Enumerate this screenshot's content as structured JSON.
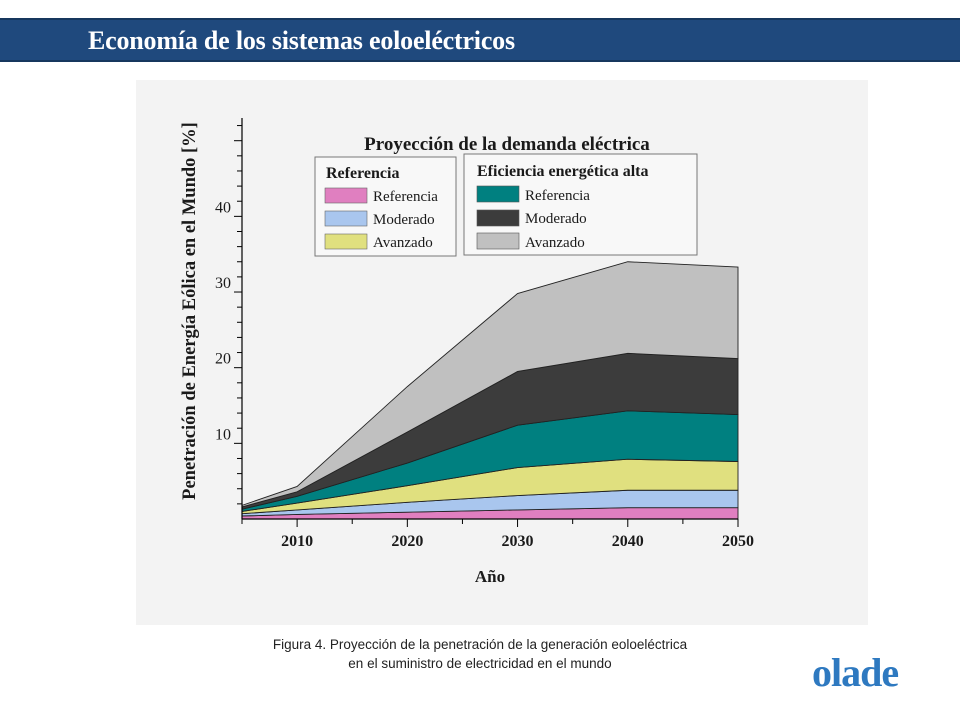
{
  "header": {
    "title": "Economía de los sistemas eoloeléctricos"
  },
  "caption": {
    "line1": "Figura 4. Proyección de la penetración de la generación eoloeléctrica",
    "line2": "en el suministro de electricidad en el mundo"
  },
  "logo": {
    "text": "olade",
    "color": "#2e79c0"
  },
  "chart_data": {
    "type": "area",
    "stacked": true,
    "title": "Proyección de la demanda eléctrica",
    "xlabel": "Año",
    "ylabel": "Penetración de Energía Eólica en el Mundo [%]",
    "x": [
      2005,
      2010,
      2020,
      2030,
      2040,
      2050
    ],
    "xlim": [
      2005,
      2050
    ],
    "ylim": [
      0,
      53
    ],
    "xticks": [
      2010,
      2020,
      2030,
      2040,
      2050
    ],
    "yticks": [
      10,
      20,
      30,
      40
    ],
    "legend_groups": [
      {
        "title": "Referencia",
        "entries": [
          "Referencia",
          "Moderado",
          "Avanzado"
        ]
      },
      {
        "title": "Eficiencia energética alta",
        "entries": [
          "Referencia",
          "Moderado",
          "Avanzado"
        ]
      }
    ],
    "series": [
      {
        "group": "Referencia",
        "name": "Referencia",
        "color": "#e07fc0",
        "values": [
          0.4,
          0.6,
          0.9,
          1.2,
          1.5,
          1.5
        ]
      },
      {
        "group": "Referencia",
        "name": "Moderado",
        "color": "#a9c6ee",
        "values": [
          0.3,
          0.6,
          1.3,
          1.9,
          2.3,
          2.3
        ]
      },
      {
        "group": "Referencia",
        "name": "Avanzado",
        "color": "#e0e07f",
        "values": [
          0.3,
          0.9,
          2.2,
          3.7,
          4.1,
          3.8
        ]
      },
      {
        "group": "Eficiencia energética alta",
        "name": "Referencia",
        "color": "#008080",
        "values": [
          0.3,
          0.9,
          3.0,
          5.6,
          6.4,
          6.2
        ]
      },
      {
        "group": "Eficiencia energética alta",
        "name": "Moderado",
        "color": "#3c3c3c",
        "values": [
          0.3,
          0.6,
          4.1,
          7.1,
          7.6,
          7.4
        ]
      },
      {
        "group": "Eficiencia energética alta",
        "name": "Avanzado",
        "color": "#c0c0c0",
        "values": [
          0.2,
          0.7,
          6.0,
          10.3,
          12.1,
          12.1
        ]
      }
    ]
  }
}
